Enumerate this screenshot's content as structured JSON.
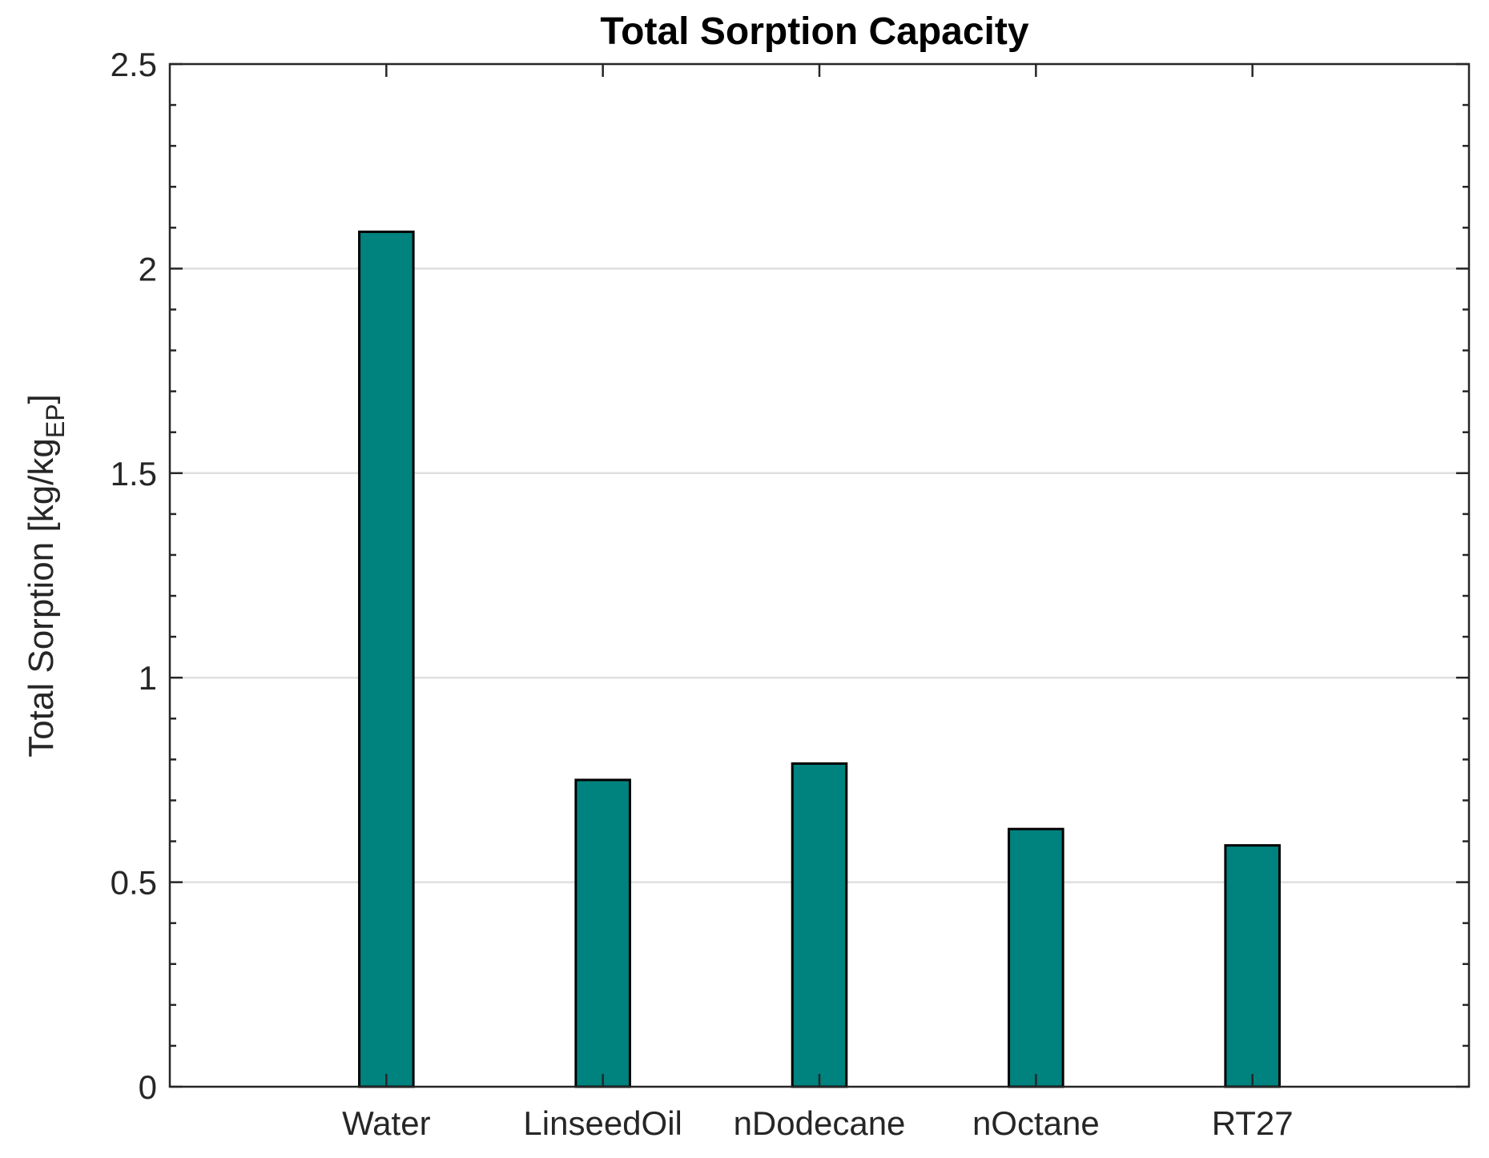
{
  "chart_data": {
    "type": "bar",
    "title": "Total Sorption Capacity",
    "xlabel": "",
    "ylabel": {
      "main": "Total Sorption [kg/kg",
      "subscript": "EP",
      "close": "]"
    },
    "categories": [
      "Water",
      "LinseedOil",
      "nDodecane",
      "nOctane",
      "RT27"
    ],
    "values": [
      2.09,
      0.75,
      0.79,
      0.63,
      0.59
    ],
    "ylim": [
      0,
      2.5
    ],
    "yticks": [
      0,
      0.5,
      1,
      1.5,
      2,
      2.5
    ],
    "ytick_labels": [
      "0",
      "0.5",
      "1",
      "1.5",
      "2",
      "2.5"
    ],
    "grid": true,
    "bar_color": "#00827F",
    "edge_color": "#000000",
    "grid_color": "#DFDFDF"
  }
}
